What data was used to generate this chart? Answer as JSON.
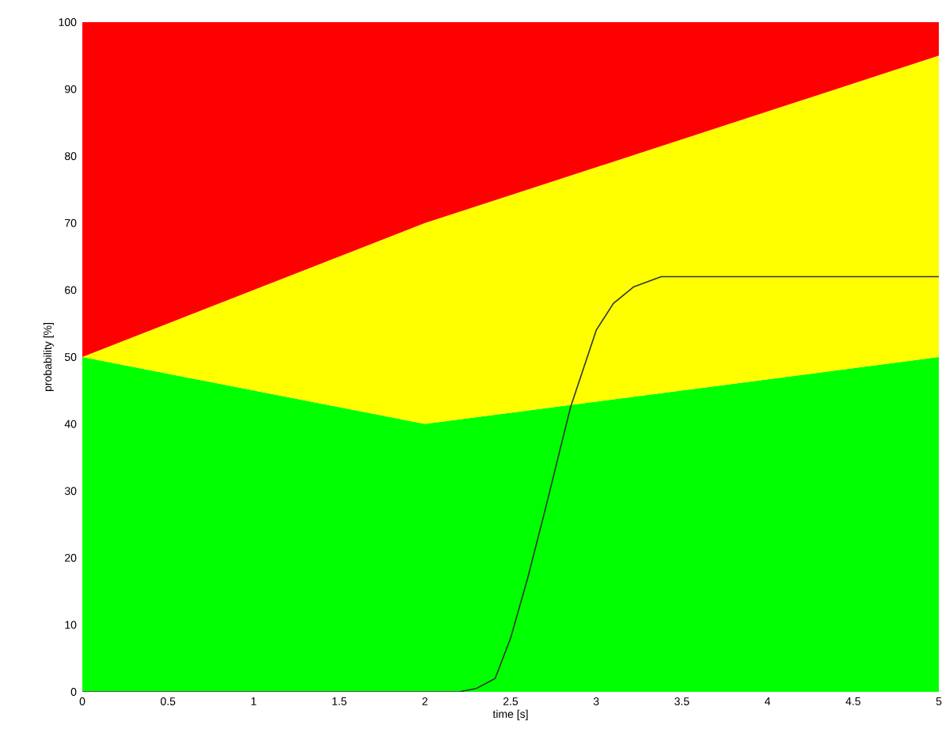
{
  "chart_data": {
    "type": "area",
    "stacked": true,
    "xlabel": "time [s]",
    "ylabel": "probability [%]",
    "xlim": [
      0,
      5
    ],
    "ylim": [
      0,
      100
    ],
    "xticks": [
      0,
      0.5,
      1,
      1.5,
      2,
      2.5,
      3,
      3.5,
      4,
      4.5,
      5
    ],
    "yticks": [
      0,
      10,
      20,
      30,
      40,
      50,
      60,
      70,
      80,
      90,
      100
    ],
    "grid": false,
    "series": [
      {
        "color": "#00ff00",
        "x": [
          0,
          2,
          5
        ],
        "values": [
          50,
          40,
          50
        ]
      },
      {
        "color": "#ffff00",
        "x": [
          0,
          2,
          5
        ],
        "values": [
          0,
          30,
          45
        ]
      },
      {
        "color": "#ff0000",
        "x": [
          0,
          2,
          5
        ],
        "values": [
          50,
          30,
          5
        ]
      },
      {
        "type": "line",
        "color": "#333333",
        "x": [
          0,
          2.2,
          2.3,
          2.41,
          2.5,
          2.6,
          2.7,
          2.85,
          3.0,
          3.1,
          3.22,
          3.38,
          5
        ],
        "values": [
          0,
          0,
          0.5,
          2,
          8,
          17,
          27,
          42.5,
          54,
          58,
          60.5,
          62,
          62
        ]
      }
    ]
  }
}
